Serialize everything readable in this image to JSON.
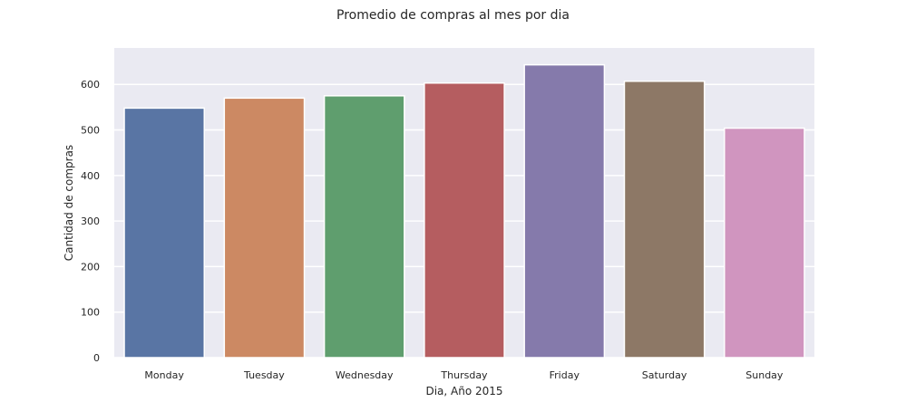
{
  "chart_data": {
    "type": "bar",
    "title": "Promedio de compras al mes por dia",
    "xlabel": "Dia, Año 2015",
    "ylabel": "Cantidad de compras",
    "categories": [
      "Monday",
      "Tuesday",
      "Wednesday",
      "Thursday",
      "Friday",
      "Saturday",
      "Sunday"
    ],
    "values": [
      548,
      570,
      575,
      603,
      643,
      607,
      504
    ],
    "colors": [
      "#5975a4",
      "#cc8963",
      "#5f9e6e",
      "#b55d60",
      "#857aab",
      "#8d7866",
      "#d095bf"
    ],
    "ylim": [
      0,
      680
    ],
    "yticks": [
      0,
      100,
      200,
      300,
      400,
      500,
      600
    ],
    "grid": true,
    "background": "#eaeaf2",
    "grid_color": "#ffffff",
    "legend": "none"
  }
}
